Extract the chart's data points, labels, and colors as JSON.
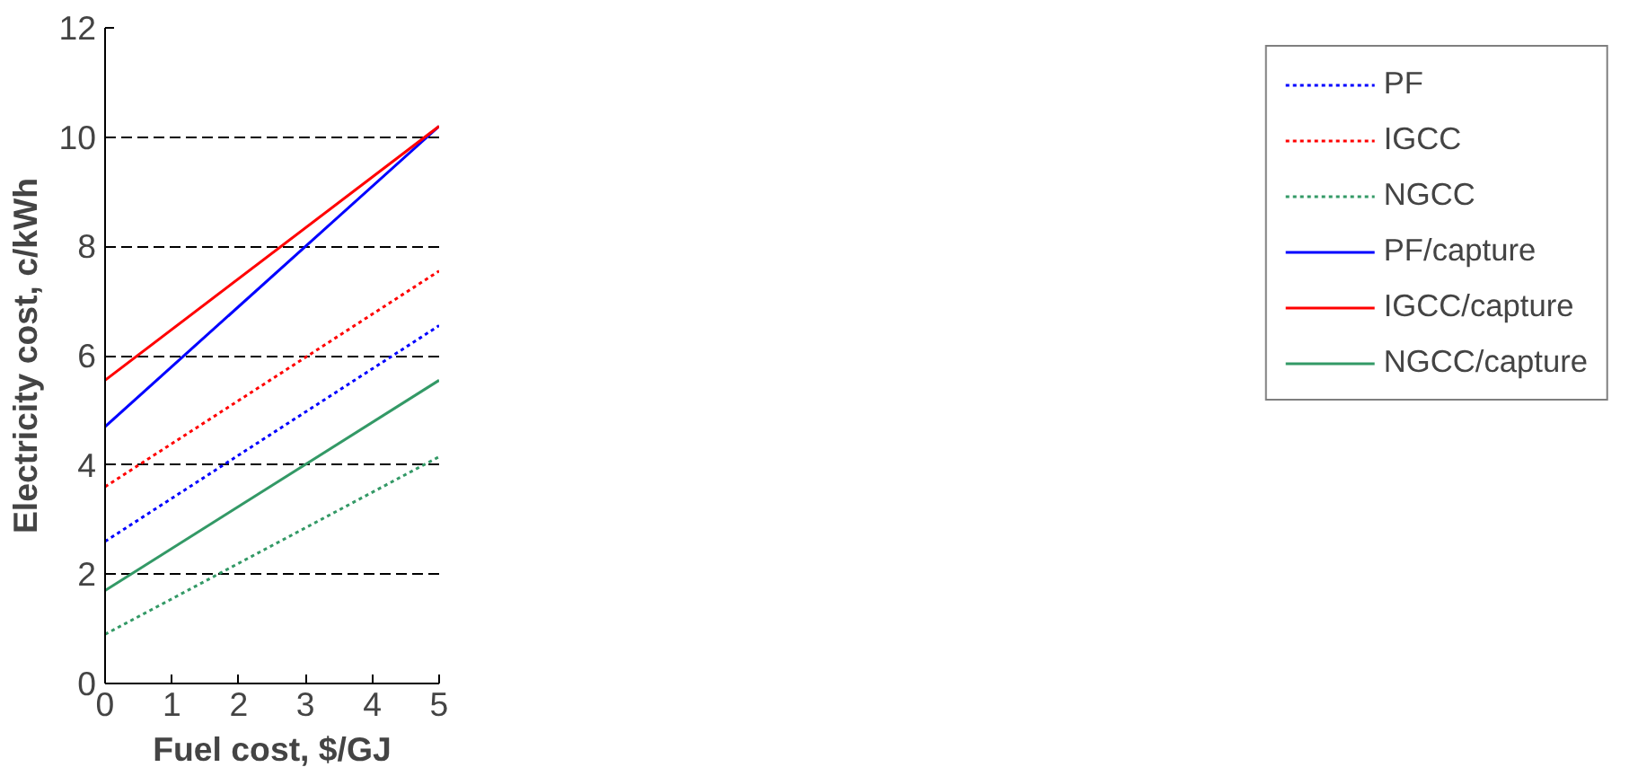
{
  "chart_data": {
    "type": "line",
    "xlabel": "Fuel cost, $/GJ",
    "ylabel": "Electricity cost, c/kWh",
    "x": [
      0,
      5
    ],
    "xlim": [
      0,
      5
    ],
    "ylim": [
      0,
      12
    ],
    "xticks": [
      0,
      1,
      2,
      3,
      4,
      5
    ],
    "yticks": [
      0,
      2,
      4,
      6,
      8,
      10,
      12
    ],
    "grid": "y",
    "legend": "right",
    "marker": "none",
    "series": [
      {
        "name": "PF",
        "color": "#0000ff",
        "values": [
          2.6,
          6.55
        ],
        "line_style": "dotted"
      },
      {
        "name": "IGCC",
        "color": "#ff0000",
        "values": [
          3.6,
          7.55
        ],
        "line_style": "dotted"
      },
      {
        "name": "NGCC",
        "color": "#339966",
        "values": [
          0.9,
          4.15
        ],
        "line_style": "dotted"
      },
      {
        "name": "PF/capture",
        "color": "#0000ff",
        "values": [
          4.7,
          10.2
        ],
        "line_style": "solid"
      },
      {
        "name": "IGCC/capture",
        "color": "#ff0000",
        "values": [
          5.55,
          10.2
        ],
        "line_style": "solid"
      },
      {
        "name": "NGCC/capture",
        "color": "#339966",
        "values": [
          1.7,
          5.55
        ],
        "line_style": "solid"
      }
    ]
  }
}
